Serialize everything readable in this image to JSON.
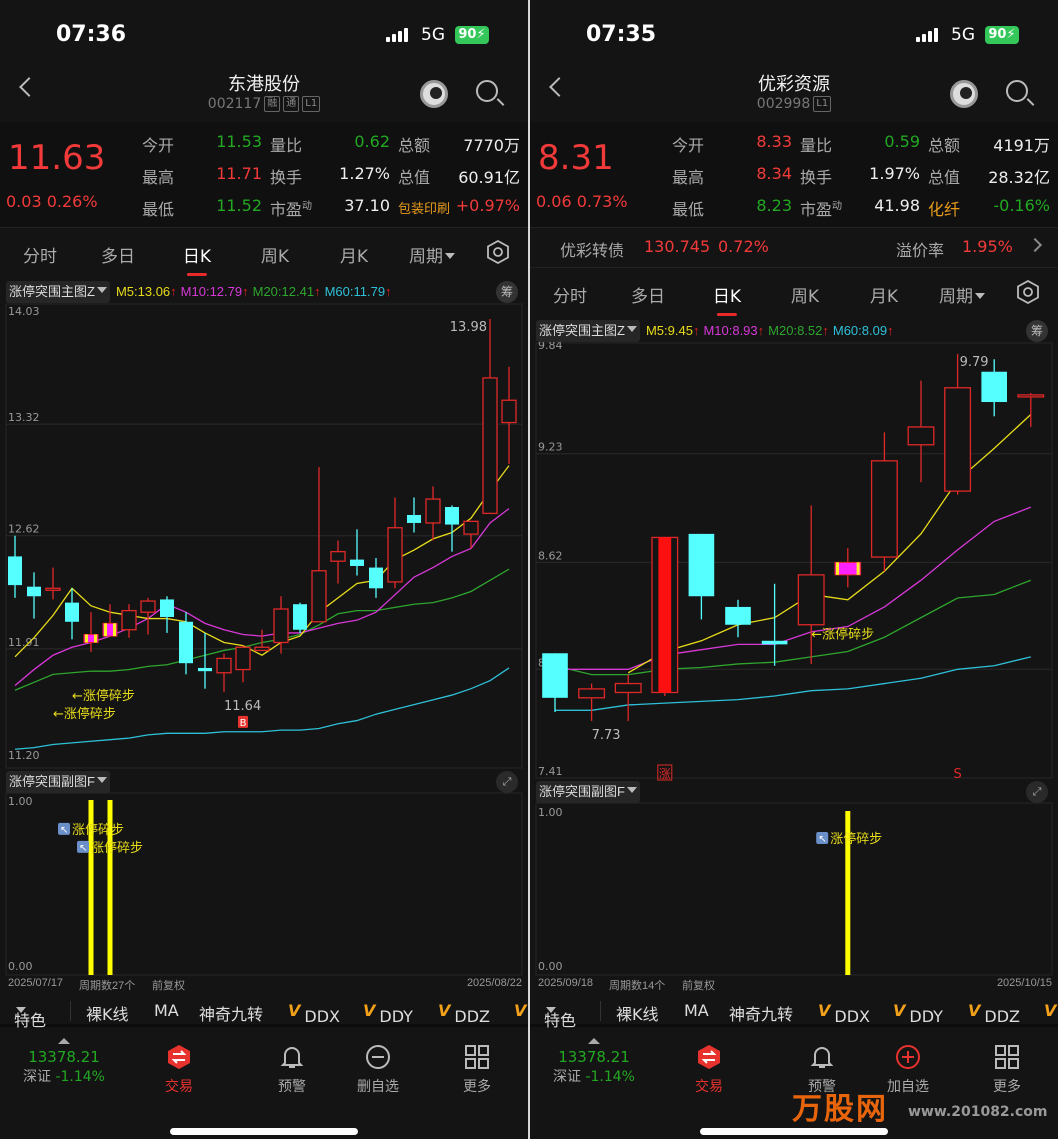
{
  "panels": [
    {
      "status": {
        "time": "07:36",
        "network": "5G",
        "battery": "90"
      },
      "header": {
        "title": "东港股份",
        "code": "002117",
        "badges": [
          "融",
          "通",
          "L1"
        ]
      },
      "quote": {
        "price": "11.63",
        "change": "0.03",
        "change_pct": "0.26%",
        "rows": [
          [
            {
              "label": "今开",
              "value": "11.53",
              "tone": "green"
            },
            {
              "label": "量比",
              "value": "0.62",
              "tone": "green"
            },
            {
              "label": "总额",
              "value": "7770万",
              "tone": "white"
            }
          ],
          [
            {
              "label": "最高",
              "value": "11.71",
              "tone": "red"
            },
            {
              "label": "换手",
              "value": "1.27%",
              "tone": "white"
            },
            {
              "label": "总值",
              "value": "60.91亿",
              "tone": "white"
            }
          ],
          [
            {
              "label": "最低",
              "value": "11.52",
              "tone": "green"
            },
            {
              "label": "市盈",
              "sup": "动",
              "value": "37.10",
              "tone": "white"
            },
            {
              "label": "包装印刷",
              "label_tone": "orange",
              "value": "+0.97%",
              "tone": "red"
            }
          ]
        ]
      },
      "tabs": [
        "分时",
        "多日",
        "日K",
        "周K",
        "月K",
        "周期"
      ],
      "active_tab": "日K",
      "main_indicator": "涨停突围主图Z",
      "ma_legend": [
        {
          "label": "M5:",
          "value": "13.06",
          "color": "#e8dc1a"
        },
        {
          "label": "M10:",
          "value": "12.79",
          "color": "#d838d8"
        },
        {
          "label": "M20:",
          "value": "12.41",
          "color": "#2ea52e"
        },
        {
          "label": "M60:",
          "value": "11.79",
          "color": "#2ec0d8"
        }
      ],
      "chip_button": "筹",
      "sub_indicator": "涨停突围副图F",
      "footer": {
        "start_date": "2025/07/17",
        "period_count": "周期数27个",
        "adjust": "前复权",
        "end_date": "2025/08/22"
      },
      "toolbar": {
        "feature": "特色",
        "items": [
          "裸K线",
          "MA",
          "神奇九转"
        ],
        "vip_items": [
          "DDX",
          "DDY",
          "DDZ",
          ""
        ]
      },
      "bottom_nav": {
        "index_value": "13378.21",
        "index_name": "深证",
        "index_pct": "-1.14%",
        "items": [
          {
            "label": "交易",
            "icon": "trade-icon"
          },
          {
            "label": "预警",
            "icon": "bell-icon"
          },
          {
            "label": "删自选",
            "icon": "minus-circle-icon"
          },
          {
            "label": "更多",
            "icon": "grid-icon"
          }
        ]
      },
      "chart_data": {
        "type": "candlestick",
        "ylim": [
          11.2,
          14.03
        ],
        "y_ticks": [
          "14.03",
          "13.32",
          "12.62",
          "11.91",
          "11.20"
        ],
        "candles": [
          [
            12.49,
            12.62,
            12.23,
            12.31
          ],
          [
            12.3,
            12.39,
            12.1,
            12.24
          ],
          [
            12.28,
            12.42,
            12.22,
            12.29
          ],
          [
            12.2,
            12.29,
            11.97,
            12.08
          ],
          [
            11.95,
            12.14,
            11.89,
            12.0,
            "mark"
          ],
          [
            11.99,
            12.19,
            11.99,
            12.07,
            "mark"
          ],
          [
            12.03,
            12.19,
            11.98,
            12.15
          ],
          [
            12.14,
            12.23,
            12.0,
            12.21
          ],
          [
            12.22,
            12.24,
            12.01,
            12.11
          ],
          [
            12.08,
            12.14,
            11.75,
            11.82
          ],
          [
            11.79,
            12.01,
            11.66,
            11.77
          ],
          [
            11.76,
            11.88,
            11.64,
            11.85
          ],
          [
            11.78,
            11.93,
            11.7,
            11.92
          ],
          [
            11.9,
            12.03,
            11.9,
            11.92
          ],
          [
            11.95,
            12.24,
            11.88,
            12.16
          ],
          [
            12.19,
            12.2,
            12.01,
            12.03
          ],
          [
            12.08,
            13.05,
            12.08,
            12.4
          ],
          [
            12.46,
            12.59,
            12.32,
            12.52
          ],
          [
            12.47,
            12.66,
            12.37,
            12.43
          ],
          [
            12.42,
            12.48,
            12.23,
            12.29
          ],
          [
            12.33,
            12.86,
            12.29,
            12.67
          ],
          [
            12.75,
            12.86,
            12.64,
            12.7
          ],
          [
            12.7,
            12.93,
            12.59,
            12.85
          ],
          [
            12.8,
            12.81,
            12.52,
            12.69
          ],
          [
            12.63,
            12.71,
            12.54,
            12.71
          ],
          [
            12.76,
            13.98,
            12.76,
            13.61
          ],
          [
            13.33,
            13.68,
            13.07,
            13.47
          ]
        ],
        "ma": {
          "M5": [
            11.86,
            11.98,
            12.12,
            12.29,
            12.18,
            12.14,
            12.12,
            12.1,
            12.1,
            12.08,
            12.01,
            11.95,
            11.93,
            11.87,
            11.95,
            11.99,
            12.14,
            12.23,
            12.32,
            12.34,
            12.47,
            12.53,
            12.6,
            12.64,
            12.73,
            12.9,
            13.06
          ],
          "M10": [
            11.68,
            11.78,
            11.87,
            11.92,
            11.95,
            11.99,
            12.04,
            12.1,
            12.19,
            12.14,
            12.07,
            12.03,
            12.0,
            11.99,
            12.01,
            12.01,
            12.04,
            12.07,
            12.09,
            12.14,
            12.25,
            12.36,
            12.42,
            12.49,
            12.54,
            12.7,
            12.79
          ],
          "M20": [
            11.65,
            11.7,
            11.75,
            11.76,
            11.77,
            11.77,
            11.78,
            11.8,
            11.81,
            11.84,
            11.87,
            11.9,
            11.92,
            11.95,
            11.97,
            12.0,
            12.06,
            12.13,
            12.15,
            12.15,
            12.17,
            12.19,
            12.2,
            12.23,
            12.27,
            12.34,
            12.41
          ],
          "M60": [
            11.28,
            11.29,
            11.31,
            11.32,
            11.33,
            11.34,
            11.35,
            11.37,
            11.38,
            11.38,
            11.38,
            11.39,
            11.39,
            11.39,
            11.4,
            11.4,
            11.41,
            11.44,
            11.46,
            11.5,
            11.53,
            11.56,
            11.59,
            11.62,
            11.66,
            11.71,
            11.79
          ]
        },
        "annotations": [
          {
            "text": "13.98",
            "candle": 25,
            "price": 13.98,
            "align": "left-of"
          },
          {
            "text": "11.64",
            "candle": 11,
            "price": 11.64,
            "align": "below"
          },
          {
            "text": "←涨停碎步",
            "candle": 3,
            "price": 11.62,
            "color": "#e8dc1a"
          },
          {
            "text": "←涨停碎步",
            "candle": 2,
            "price": 11.53,
            "color": "#e8dc1a"
          }
        ],
        "markers": [
          {
            "text": "B",
            "candle": 12,
            "kind": "buy"
          }
        ],
        "sub": {
          "ylim": [
            0,
            1
          ],
          "y_ticks": [
            "1.00",
            "0.00"
          ],
          "bars": [
            {
              "candle": 4,
              "value": 1
            },
            {
              "candle": 5,
              "value": 1
            }
          ],
          "labels": [
            {
              "text": "涨停碎步",
              "candle": 2,
              "value": 0.83
            },
            {
              "text": "涨停碎步",
              "candle": 3,
              "value": 0.83
            }
          ]
        }
      }
    },
    {
      "status": {
        "time": "07:35",
        "network": "5G",
        "battery": "90"
      },
      "header": {
        "title": "优彩资源",
        "code": "002998",
        "badges": [
          "L1"
        ]
      },
      "quote": {
        "price": "8.31",
        "change": "0.06",
        "change_pct": "0.73%",
        "rows": [
          [
            {
              "label": "今开",
              "value": "8.33",
              "tone": "red"
            },
            {
              "label": "量比",
              "value": "0.59",
              "tone": "green"
            },
            {
              "label": "总额",
              "value": "4191万",
              "tone": "white"
            }
          ],
          [
            {
              "label": "最高",
              "value": "8.34",
              "tone": "red"
            },
            {
              "label": "换手",
              "value": "1.97%",
              "tone": "white"
            },
            {
              "label": "总值",
              "value": "28.32亿",
              "tone": "white"
            }
          ],
          [
            {
              "label": "最低",
              "value": "8.23",
              "tone": "green"
            },
            {
              "label": "市盈",
              "sup": "动",
              "value": "41.98",
              "tone": "white"
            },
            {
              "label": "化纤",
              "label_tone": "orange",
              "value": "-0.16%",
              "tone": "green"
            }
          ]
        ]
      },
      "bond": {
        "name": "优彩转债",
        "price": "130.745",
        "pct": "0.72%",
        "premium_label": "溢价率",
        "premium": "1.95%"
      },
      "tabs": [
        "分时",
        "多日",
        "日K",
        "周K",
        "月K",
        "周期"
      ],
      "active_tab": "日K",
      "main_indicator": "涨停突围主图Z",
      "ma_legend": [
        {
          "label": "M5:",
          "value": "9.45",
          "color": "#e8dc1a"
        },
        {
          "label": "M10:",
          "value": "8.93",
          "color": "#d838d8"
        },
        {
          "label": "M20:",
          "value": "8.52",
          "color": "#2ea52e"
        },
        {
          "label": "M60:",
          "value": "8.09",
          "color": "#2ec0d8"
        }
      ],
      "chip_button": "筹",
      "sub_indicator": "涨停突围副图F",
      "footer": {
        "start_date": "2025/09/18",
        "period_count": "周期数14个",
        "adjust": "前复权",
        "end_date": "2025/10/15"
      },
      "toolbar": {
        "feature": "特色",
        "items": [
          "裸K线",
          "MA",
          "神奇九转"
        ],
        "vip_items": [
          "DDX",
          "DDY",
          "DDZ",
          ""
        ]
      },
      "bottom_nav": {
        "index_value": "13378.21",
        "index_name": "深证",
        "index_pct": "-1.14%",
        "items": [
          {
            "label": "交易",
            "icon": "trade-icon"
          },
          {
            "label": "预警",
            "icon": "bell-icon"
          },
          {
            "label": "加自选",
            "icon": "plus-circle-icon"
          },
          {
            "label": "更多",
            "icon": "grid-icon"
          }
        ]
      },
      "logo": {
        "text": "万股网",
        "url": "www.201082.com"
      },
      "chart_data": {
        "type": "candlestick",
        "ylim": [
          7.41,
          9.84
        ],
        "y_ticks": [
          "9.84",
          "9.23",
          "8.62",
          "8.02",
          "7.41"
        ],
        "candles": [
          [
            8.11,
            8.11,
            7.78,
            7.86
          ],
          [
            7.86,
            7.94,
            7.73,
            7.91
          ],
          [
            7.89,
            7.99,
            7.73,
            7.94
          ],
          [
            7.89,
            8.76,
            7.87,
            8.76,
            "limit_up"
          ],
          [
            8.78,
            8.78,
            8.3,
            8.43
          ],
          [
            8.37,
            8.41,
            8.2,
            8.27
          ],
          [
            8.18,
            8.5,
            8.04,
            8.16
          ],
          [
            8.27,
            8.94,
            8.05,
            8.55
          ],
          [
            8.55,
            8.7,
            8.48,
            8.62,
            "mark"
          ],
          [
            8.65,
            9.35,
            8.57,
            9.19
          ],
          [
            9.28,
            9.64,
            9.07,
            9.38
          ],
          [
            9.02,
            9.79,
            9.0,
            9.6
          ],
          [
            9.69,
            9.76,
            9.44,
            9.52
          ],
          [
            9.55,
            9.57,
            9.38,
            9.56
          ]
        ],
        "ma": {
          "M5": [
            null,
            null,
            8.0,
            8.12,
            8.18,
            8.27,
            8.31,
            8.44,
            8.41,
            8.57,
            8.78,
            9.08,
            9.26,
            9.45
          ],
          "M10": [
            8.02,
            8.02,
            8.02,
            8.1,
            8.13,
            8.16,
            8.16,
            8.23,
            8.26,
            8.37,
            8.52,
            8.69,
            8.85,
            8.93
          ],
          "M20": [
            8.04,
            7.99,
            7.99,
            8.02,
            8.03,
            8.05,
            8.06,
            8.09,
            8.12,
            8.2,
            8.31,
            8.42,
            8.44,
            8.52
          ],
          "M60": [
            7.79,
            7.79,
            7.82,
            7.83,
            7.84,
            7.85,
            7.87,
            7.9,
            7.91,
            7.94,
            7.97,
            8.02,
            8.04,
            8.09
          ]
        },
        "annotations": [
          {
            "text": "7.73",
            "candle": 1,
            "price": 7.73,
            "align": "below"
          },
          {
            "text": "9.79",
            "candle": 11,
            "price": 9.79,
            "align": "right-of"
          },
          {
            "text": "←涨停碎步",
            "candle": 7,
            "price": 8.22,
            "color": "#e8dc1a"
          }
        ],
        "markers": [
          {
            "text": "涨",
            "candle": 3,
            "kind": "limit"
          },
          {
            "text": "S",
            "candle": 11,
            "kind": "sell"
          }
        ],
        "sub": {
          "ylim": [
            0,
            1
          ],
          "y_ticks": [
            "1.00",
            "0.00"
          ],
          "bars": [
            {
              "candle": 8,
              "value": 1
            }
          ],
          "labels": [
            {
              "text": "涨停碎步",
              "candle": 7,
              "value": 0.83
            }
          ]
        }
      }
    }
  ]
}
